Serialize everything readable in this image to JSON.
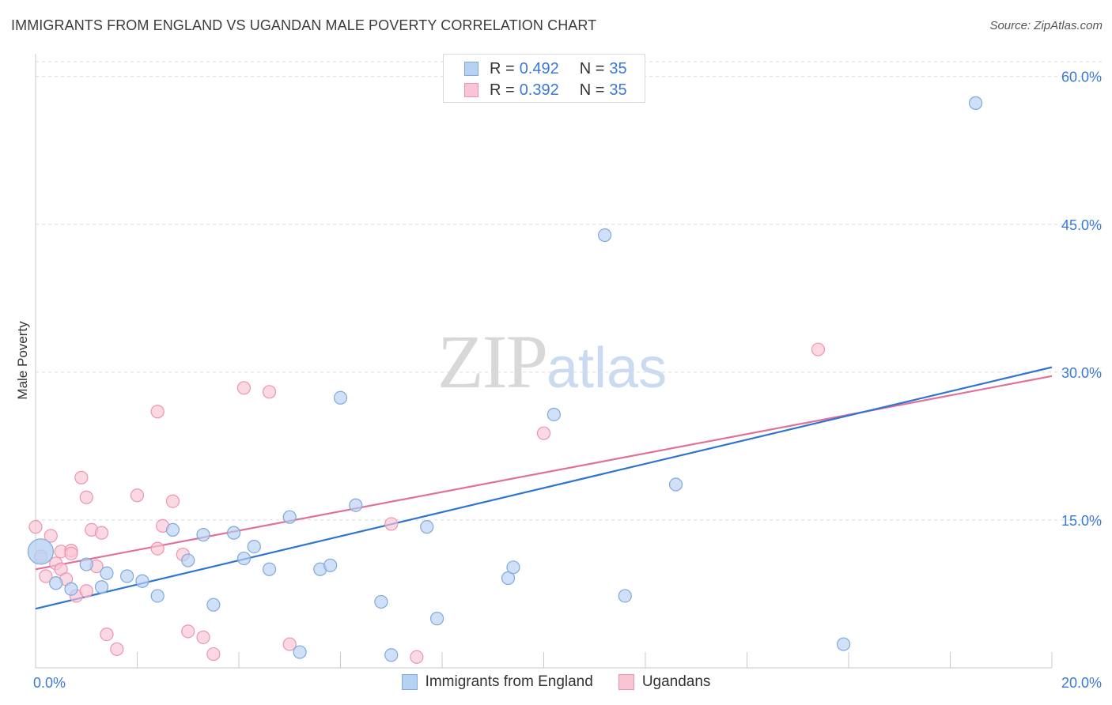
{
  "header": {
    "title": "IMMIGRANTS FROM ENGLAND VS UGANDAN MALE POVERTY CORRELATION CHART",
    "source": "Source: ZipAtlas.com"
  },
  "legend_top": {
    "rows": [
      {
        "r_label": "R = ",
        "r_value": "0.492",
        "n_label": "N = ",
        "n_value": "35"
      },
      {
        "r_label": "R = ",
        "r_value": "0.392",
        "n_label": "N = ",
        "n_value": "35"
      }
    ]
  },
  "legend_bottom": {
    "items": [
      {
        "label": "Immigrants from England"
      },
      {
        "label": "Ugandans"
      }
    ]
  },
  "watermark": {
    "part1": "ZIP",
    "part2": "atlas"
  },
  "colors": {
    "blue_fill": "#b7d1f3",
    "blue_stroke": "#7fa8dc",
    "blue_line": "#2f74d0",
    "pink_fill": "#f9c4d3",
    "pink_stroke": "#ef93b0",
    "pink_line": "#e0709a",
    "tick_label": "#3b78d8",
    "grid": "#dcdcdc"
  },
  "chart_data": {
    "type": "scatter",
    "title": "IMMIGRANTS FROM ENGLAND VS UGANDAN MALE POVERTY CORRELATION CHART",
    "xlabel": "",
    "ylabel": "Male Poverty",
    "xlim": [
      0,
      20
    ],
    "ylim": [
      0,
      61.5
    ],
    "x_tick_labels": [
      {
        "value": 0,
        "label": "0.0%"
      },
      {
        "value": 20,
        "label": "20.0%"
      }
    ],
    "y_tick_labels": [
      {
        "value": 15,
        "label": "15.0%"
      },
      {
        "value": 30,
        "label": "30.0%"
      },
      {
        "value": 45,
        "label": "45.0%"
      },
      {
        "value": 60,
        "label": "60.0%"
      }
    ],
    "series": [
      {
        "name": "Immigrants from England",
        "r": 0.492,
        "n": 35,
        "trend": {
          "x": [
            0,
            20
          ],
          "y": [
            6.0,
            30.5
          ]
        },
        "points": [
          {
            "x": 0.1,
            "y": 11.8,
            "big": true
          },
          {
            "x": 0.4,
            "y": 8.6
          },
          {
            "x": 0.7,
            "y": 8.0
          },
          {
            "x": 1.0,
            "y": 10.5
          },
          {
            "x": 1.4,
            "y": 9.6
          },
          {
            "x": 1.8,
            "y": 9.3
          },
          {
            "x": 2.1,
            "y": 8.8
          },
          {
            "x": 2.4,
            "y": 7.3
          },
          {
            "x": 2.7,
            "y": 14.0
          },
          {
            "x": 3.0,
            "y": 10.9
          },
          {
            "x": 3.3,
            "y": 13.5
          },
          {
            "x": 3.5,
            "y": 6.4
          },
          {
            "x": 3.9,
            "y": 13.7
          },
          {
            "x": 4.1,
            "y": 11.1
          },
          {
            "x": 4.3,
            "y": 12.3
          },
          {
            "x": 4.6,
            "y": 10.0
          },
          {
            "x": 5.0,
            "y": 15.3
          },
          {
            "x": 5.2,
            "y": 1.6
          },
          {
            "x": 5.6,
            "y": 10.0
          },
          {
            "x": 5.8,
            "y": 10.4
          },
          {
            "x": 6.0,
            "y": 27.4
          },
          {
            "x": 6.3,
            "y": 16.5
          },
          {
            "x": 6.8,
            "y": 6.7
          },
          {
            "x": 7.0,
            "y": 1.3
          },
          {
            "x": 7.7,
            "y": 14.3
          },
          {
            "x": 7.9,
            "y": 5.0
          },
          {
            "x": 9.3,
            "y": 9.1
          },
          {
            "x": 9.4,
            "y": 10.2
          },
          {
            "x": 10.2,
            "y": 25.7
          },
          {
            "x": 11.2,
            "y": 43.9
          },
          {
            "x": 11.6,
            "y": 7.3
          },
          {
            "x": 12.6,
            "y": 18.6
          },
          {
            "x": 15.9,
            "y": 2.4
          },
          {
            "x": 18.5,
            "y": 57.3
          },
          {
            "x": 1.3,
            "y": 8.2
          }
        ]
      },
      {
        "name": "Ugandans",
        "r": 0.392,
        "n": 35,
        "trend": {
          "x": [
            0,
            20
          ],
          "y": [
            10.0,
            29.6
          ]
        },
        "points": [
          {
            "x": 0.0,
            "y": 14.3
          },
          {
            "x": 0.1,
            "y": 11.3
          },
          {
            "x": 0.2,
            "y": 9.3
          },
          {
            "x": 0.3,
            "y": 13.4
          },
          {
            "x": 0.4,
            "y": 10.6
          },
          {
            "x": 0.5,
            "y": 10.0
          },
          {
            "x": 0.5,
            "y": 11.8
          },
          {
            "x": 0.6,
            "y": 9.0
          },
          {
            "x": 0.7,
            "y": 11.9
          },
          {
            "x": 0.7,
            "y": 11.6
          },
          {
            "x": 0.8,
            "y": 7.3
          },
          {
            "x": 0.9,
            "y": 19.3
          },
          {
            "x": 1.0,
            "y": 17.3
          },
          {
            "x": 1.0,
            "y": 7.8
          },
          {
            "x": 1.1,
            "y": 14.0
          },
          {
            "x": 1.2,
            "y": 10.3
          },
          {
            "x": 1.3,
            "y": 13.7
          },
          {
            "x": 1.4,
            "y": 3.4
          },
          {
            "x": 1.6,
            "y": 1.9
          },
          {
            "x": 2.0,
            "y": 17.5
          },
          {
            "x": 2.4,
            "y": 26.0
          },
          {
            "x": 2.4,
            "y": 12.1
          },
          {
            "x": 2.5,
            "y": 14.4
          },
          {
            "x": 2.7,
            "y": 16.9
          },
          {
            "x": 2.9,
            "y": 11.5
          },
          {
            "x": 3.0,
            "y": 3.7
          },
          {
            "x": 3.3,
            "y": 3.1
          },
          {
            "x": 3.5,
            "y": 1.4
          },
          {
            "x": 4.1,
            "y": 28.4
          },
          {
            "x": 4.6,
            "y": 28.0
          },
          {
            "x": 5.0,
            "y": 2.4
          },
          {
            "x": 7.0,
            "y": 14.6
          },
          {
            "x": 7.5,
            "y": 1.1
          },
          {
            "x": 10.0,
            "y": 23.8
          },
          {
            "x": 15.4,
            "y": 32.3
          }
        ]
      }
    ]
  }
}
